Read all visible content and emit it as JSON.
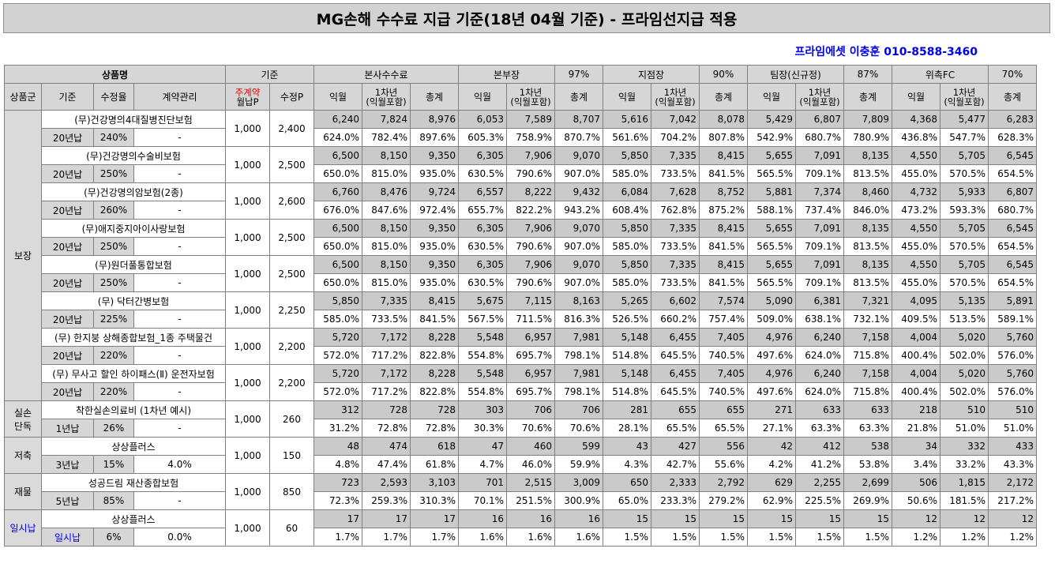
{
  "title": "MG손해 수수료 지급 기준(18년 04월 기준) - 프라임선지급 적용",
  "contact": "프라임에셋 이충훈 010-8588-3460",
  "header": {
    "product_name": "상품명",
    "standard": "기준",
    "groups": [
      {
        "label": "본사수수료",
        "pct": ""
      },
      {
        "label": "본부장",
        "pct": "97%"
      },
      {
        "label": "지점장",
        "pct": "90%"
      },
      {
        "label": "팀장(신규정)",
        "pct": "87%"
      },
      {
        "label": "위촉FC",
        "pct": "70%"
      }
    ],
    "sub": {
      "category": "상품군",
      "base": "기준",
      "fee_rate": "수정율",
      "contract_mgmt": "계약관리",
      "main_contract_top": "주계약",
      "main_contract_bottom": "월납P",
      "adjusted_p": "수정P",
      "month1": "익월",
      "year1_top": "1차년",
      "year1_bottom": "(익월포함)",
      "total": "총계"
    }
  },
  "rows": [
    {
      "name": "(무)건강명의4대질병진단보험",
      "base": "20년납",
      "rate": "240%",
      "mgmt": "-",
      "mp": "1,000",
      "ap": "2,400",
      "amt": [
        "6,240",
        "7,824",
        "8,976",
        "6,053",
        "7,589",
        "8,707",
        "5,616",
        "7,042",
        "8,078",
        "5,429",
        "6,807",
        "7,809",
        "4,368",
        "5,477",
        "6,283"
      ],
      "pct": [
        "624.0%",
        "782.4%",
        "897.6%",
        "605.3%",
        "758.9%",
        "870.7%",
        "561.6%",
        "704.2%",
        "807.8%",
        "542.9%",
        "680.7%",
        "780.9%",
        "436.8%",
        "547.7%",
        "628.3%"
      ]
    },
    {
      "name": "(무)건강명의수술비보험",
      "base": "20년납",
      "rate": "250%",
      "mgmt": "-",
      "mp": "1,000",
      "ap": "2,500",
      "amt": [
        "6,500",
        "8,150",
        "9,350",
        "6,305",
        "7,906",
        "9,070",
        "5,850",
        "7,335",
        "8,415",
        "5,655",
        "7,091",
        "8,135",
        "4,550",
        "5,705",
        "6,545"
      ],
      "pct": [
        "650.0%",
        "815.0%",
        "935.0%",
        "630.5%",
        "790.6%",
        "907.0%",
        "585.0%",
        "733.5%",
        "841.5%",
        "565.5%",
        "709.1%",
        "813.5%",
        "455.0%",
        "570.5%",
        "654.5%"
      ]
    },
    {
      "name": "(무)건강명의암보험(2종)",
      "base": "20년납",
      "rate": "260%",
      "mgmt": "-",
      "mp": "1,000",
      "ap": "2,600",
      "amt": [
        "6,760",
        "8,476",
        "9,724",
        "6,557",
        "8,222",
        "9,432",
        "6,084",
        "7,628",
        "8,752",
        "5,881",
        "7,374",
        "8,460",
        "4,732",
        "5,933",
        "6,807"
      ],
      "pct": [
        "676.0%",
        "847.6%",
        "972.4%",
        "655.7%",
        "822.2%",
        "943.2%",
        "608.4%",
        "762.8%",
        "875.2%",
        "588.1%",
        "737.4%",
        "846.0%",
        "473.2%",
        "593.3%",
        "680.7%"
      ]
    },
    {
      "name": "(무)애지중지아이사랑보험",
      "base": "20년납",
      "rate": "250%",
      "mgmt": "-",
      "mp": "1,000",
      "ap": "2,500",
      "amt": [
        "6,500",
        "8,150",
        "9,350",
        "6,305",
        "7,906",
        "9,070",
        "5,850",
        "7,335",
        "8,415",
        "5,655",
        "7,091",
        "8,135",
        "4,550",
        "5,705",
        "6,545"
      ],
      "pct": [
        "650.0%",
        "815.0%",
        "935.0%",
        "630.5%",
        "790.6%",
        "907.0%",
        "585.0%",
        "733.5%",
        "841.5%",
        "565.5%",
        "709.1%",
        "813.5%",
        "455.0%",
        "570.5%",
        "654.5%"
      ]
    },
    {
      "name": "(무)원더풀통합보험",
      "base": "20년납",
      "rate": "250%",
      "mgmt": "-",
      "mp": "1,000",
      "ap": "2,500",
      "amt": [
        "6,500",
        "8,150",
        "9,350",
        "6,305",
        "7,906",
        "9,070",
        "5,850",
        "7,335",
        "8,415",
        "5,655",
        "7,091",
        "8,135",
        "4,550",
        "5,705",
        "6,545"
      ],
      "pct": [
        "650.0%",
        "815.0%",
        "935.0%",
        "630.5%",
        "790.6%",
        "907.0%",
        "585.0%",
        "733.5%",
        "841.5%",
        "565.5%",
        "709.1%",
        "813.5%",
        "455.0%",
        "570.5%",
        "654.5%"
      ]
    },
    {
      "name": "(무) 닥터간병보험",
      "base": "20년납",
      "rate": "225%",
      "mgmt": "-",
      "mp": "1,000",
      "ap": "2,250",
      "amt": [
        "5,850",
        "7,335",
        "8,415",
        "5,675",
        "7,115",
        "8,163",
        "5,265",
        "6,602",
        "7,574",
        "5,090",
        "6,381",
        "7,321",
        "4,095",
        "5,135",
        "5,891"
      ],
      "pct": [
        "585.0%",
        "733.5%",
        "841.5%",
        "567.5%",
        "711.5%",
        "816.3%",
        "526.5%",
        "660.2%",
        "757.4%",
        "509.0%",
        "638.1%",
        "732.1%",
        "409.5%",
        "513.5%",
        "589.1%"
      ]
    },
    {
      "name": "(무) 한지붕 상해종합보험_1종 주택물건",
      "base": "20년납",
      "rate": "220%",
      "mgmt": "-",
      "mp": "1,000",
      "ap": "2,200",
      "amt": [
        "5,720",
        "7,172",
        "8,228",
        "5,548",
        "6,957",
        "7,981",
        "5,148",
        "6,455",
        "7,405",
        "4,976",
        "6,240",
        "7,158",
        "4,004",
        "5,020",
        "5,760"
      ],
      "pct": [
        "572.0%",
        "717.2%",
        "822.8%",
        "554.8%",
        "695.7%",
        "798.1%",
        "514.8%",
        "645.5%",
        "740.5%",
        "497.6%",
        "624.0%",
        "715.8%",
        "400.4%",
        "502.0%",
        "576.0%"
      ]
    },
    {
      "name": "(무) 무사고 할인 하이패스(Ⅱ) 운전자보험",
      "base": "20년납",
      "rate": "220%",
      "mgmt": "-",
      "mp": "1,000",
      "ap": "2,200",
      "amt": [
        "5,720",
        "7,172",
        "8,228",
        "5,548",
        "6,957",
        "7,981",
        "5,148",
        "6,455",
        "7,405",
        "4,976",
        "6,240",
        "7,158",
        "4,004",
        "5,020",
        "5,760"
      ],
      "pct": [
        "572.0%",
        "717.2%",
        "822.8%",
        "554.8%",
        "695.7%",
        "798.1%",
        "514.8%",
        "645.5%",
        "740.5%",
        "497.6%",
        "624.0%",
        "715.8%",
        "400.4%",
        "502.0%",
        "576.0%"
      ]
    },
    {
      "name": "착한실손의료비 (1차년 예시)",
      "base": "1년납",
      "rate": "26%",
      "mgmt": "-",
      "mp": "1,000",
      "ap": "260",
      "amt": [
        "312",
        "728",
        "728",
        "303",
        "706",
        "706",
        "281",
        "655",
        "655",
        "271",
        "633",
        "633",
        "218",
        "510",
        "510"
      ],
      "pct": [
        "31.2%",
        "72.8%",
        "72.8%",
        "30.3%",
        "70.6%",
        "70.6%",
        "28.1%",
        "65.5%",
        "65.5%",
        "27.1%",
        "63.3%",
        "63.3%",
        "21.8%",
        "51.0%",
        "51.0%"
      ]
    },
    {
      "name": "상상플러스",
      "base": "3년납",
      "rate": "15%",
      "mgmt": "4.0%",
      "mp": "1,000",
      "ap": "150",
      "amt": [
        "48",
        "474",
        "618",
        "47",
        "460",
        "599",
        "43",
        "427",
        "556",
        "42",
        "412",
        "538",
        "34",
        "332",
        "433"
      ],
      "pct": [
        "4.8%",
        "47.4%",
        "61.8%",
        "4.7%",
        "46.0%",
        "59.9%",
        "4.3%",
        "42.7%",
        "55.6%",
        "4.2%",
        "41.2%",
        "53.8%",
        "3.4%",
        "33.2%",
        "43.3%"
      ]
    },
    {
      "name": "성공드림 재산종합보험",
      "base": "5년납",
      "rate": "85%",
      "mgmt": "-",
      "mp": "1,000",
      "ap": "850",
      "amt": [
        "723",
        "2,593",
        "3,103",
        "701",
        "2,515",
        "3,009",
        "650",
        "2,333",
        "2,792",
        "629",
        "2,255",
        "2,699",
        "506",
        "1,815",
        "2,172"
      ],
      "pct": [
        "72.3%",
        "259.3%",
        "310.3%",
        "70.1%",
        "251.5%",
        "300.9%",
        "65.0%",
        "233.3%",
        "279.2%",
        "62.9%",
        "225.5%",
        "269.9%",
        "50.6%",
        "181.5%",
        "217.2%"
      ]
    },
    {
      "name": "상상플러스",
      "base": "일시납",
      "rate": "6%",
      "mgmt": "0.0%",
      "mp": "1,000",
      "ap": "60",
      "amt": [
        "17",
        "17",
        "17",
        "16",
        "16",
        "16",
        "15",
        "15",
        "15",
        "15",
        "15",
        "15",
        "12",
        "12",
        "12"
      ],
      "pct": [
        "1.7%",
        "1.7%",
        "1.7%",
        "1.6%",
        "1.6%",
        "1.6%",
        "1.5%",
        "1.5%",
        "1.5%",
        "1.5%",
        "1.5%",
        "1.5%",
        "1.2%",
        "1.2%",
        "1.2%"
      ]
    }
  ],
  "categories": [
    {
      "label": "보장",
      "start": 0,
      "span": 8,
      "blue": false
    },
    {
      "label": "실손\n단독",
      "start": 8,
      "span": 1,
      "blue": false
    },
    {
      "label": "저축",
      "start": 9,
      "span": 1,
      "blue": false
    },
    {
      "label": "재물",
      "start": 10,
      "span": 1,
      "blue": false
    },
    {
      "label": "일시납",
      "start": 11,
      "span": 1,
      "blue": true
    }
  ]
}
